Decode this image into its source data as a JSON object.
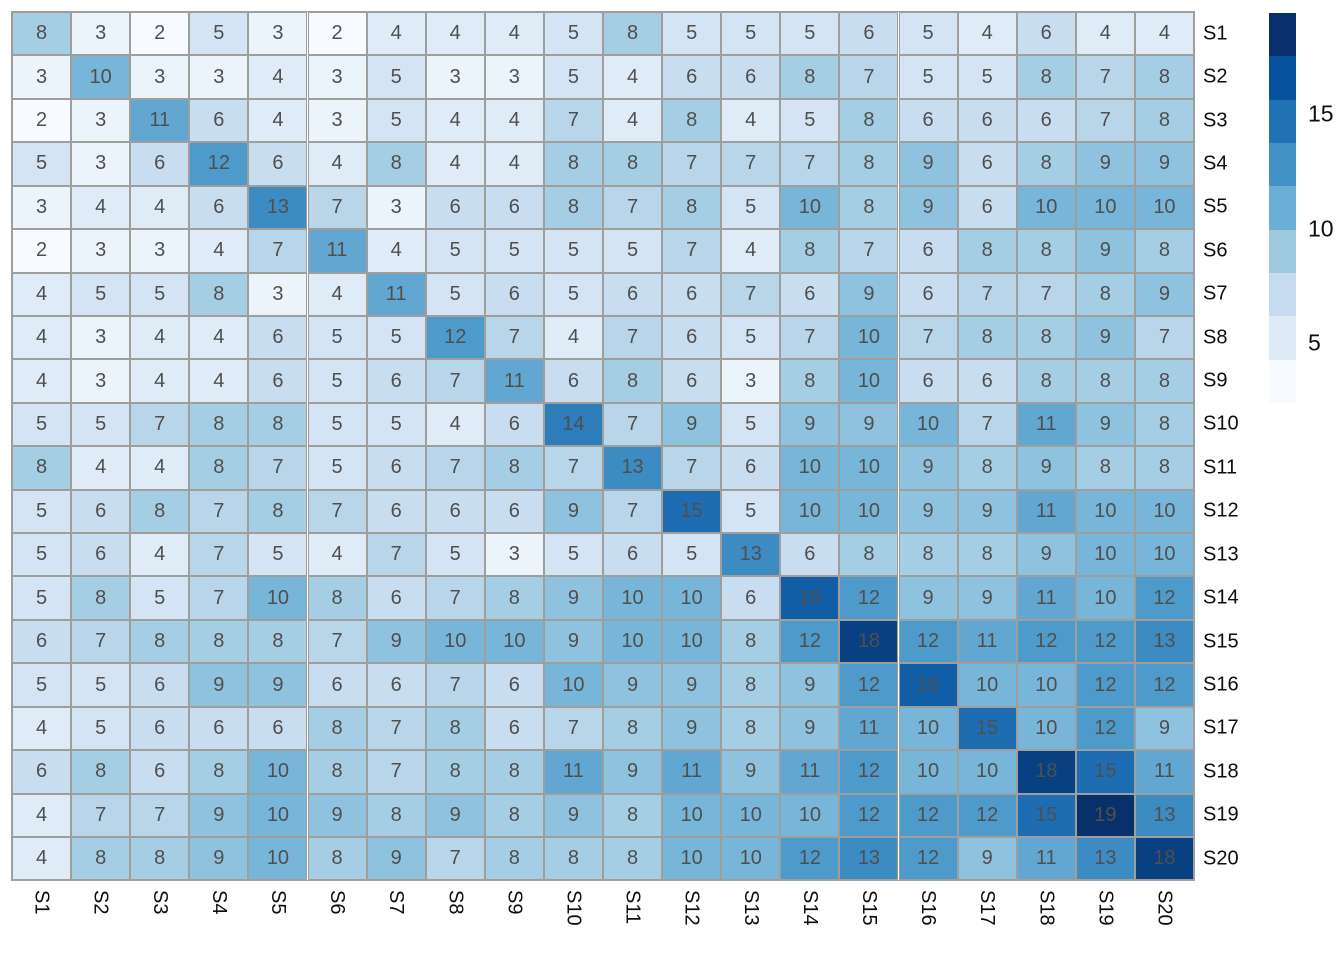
{
  "chart_data": {
    "type": "heatmap",
    "title": "",
    "xlabel": "",
    "ylabel": "",
    "x_categories": [
      "S1",
      "S2",
      "S3",
      "S4",
      "S5",
      "S6",
      "S7",
      "S8",
      "S9",
      "S10",
      "S11",
      "S12",
      "S13",
      "S14",
      "S15",
      "S16",
      "S17",
      "S18",
      "S19",
      "S20"
    ],
    "y_categories": [
      "S1",
      "S2",
      "S3",
      "S4",
      "S5",
      "S6",
      "S7",
      "S8",
      "S9",
      "S10",
      "S11",
      "S12",
      "S13",
      "S14",
      "S15",
      "S16",
      "S17",
      "S18",
      "S19",
      "S20"
    ],
    "matrix": [
      [
        8,
        3,
        2,
        5,
        3,
        2,
        4,
        4,
        4,
        5,
        8,
        5,
        5,
        5,
        6,
        5,
        4,
        6,
        4,
        4
      ],
      [
        3,
        10,
        3,
        3,
        4,
        3,
        5,
        3,
        3,
        5,
        4,
        6,
        6,
        8,
        7,
        5,
        5,
        8,
        7,
        8
      ],
      [
        2,
        3,
        11,
        6,
        4,
        3,
        5,
        4,
        4,
        7,
        4,
        8,
        4,
        5,
        8,
        6,
        6,
        6,
        7,
        8
      ],
      [
        5,
        3,
        6,
        12,
        6,
        4,
        8,
        4,
        4,
        8,
        8,
        7,
        7,
        7,
        8,
        9,
        6,
        8,
        9,
        9
      ],
      [
        3,
        4,
        4,
        6,
        13,
        7,
        3,
        6,
        6,
        8,
        7,
        8,
        5,
        10,
        8,
        9,
        6,
        10,
        10,
        10
      ],
      [
        2,
        3,
        3,
        4,
        7,
        11,
        4,
        5,
        5,
        5,
        5,
        7,
        4,
        8,
        7,
        6,
        8,
        8,
        9,
        8
      ],
      [
        4,
        5,
        5,
        8,
        3,
        4,
        11,
        5,
        6,
        5,
        6,
        6,
        7,
        6,
        9,
        6,
        7,
        7,
        8,
        9
      ],
      [
        4,
        3,
        4,
        4,
        6,
        5,
        5,
        12,
        7,
        4,
        7,
        6,
        5,
        7,
        10,
        7,
        8,
        8,
        9,
        7
      ],
      [
        4,
        3,
        4,
        4,
        6,
        5,
        6,
        7,
        11,
        6,
        8,
        6,
        3,
        8,
        10,
        6,
        6,
        8,
        8,
        8
      ],
      [
        5,
        5,
        7,
        8,
        8,
        5,
        5,
        4,
        6,
        14,
        7,
        9,
        5,
        9,
        9,
        10,
        7,
        11,
        9,
        8
      ],
      [
        8,
        4,
        4,
        8,
        7,
        5,
        6,
        7,
        8,
        7,
        13,
        7,
        6,
        10,
        10,
        9,
        8,
        9,
        8,
        8
      ],
      [
        5,
        6,
        8,
        7,
        8,
        7,
        6,
        6,
        6,
        9,
        7,
        15,
        5,
        10,
        10,
        9,
        9,
        11,
        10,
        10
      ],
      [
        5,
        6,
        4,
        7,
        5,
        4,
        7,
        5,
        3,
        5,
        6,
        5,
        13,
        6,
        8,
        8,
        8,
        9,
        10,
        10
      ],
      [
        5,
        8,
        5,
        7,
        10,
        8,
        6,
        7,
        8,
        9,
        10,
        10,
        6,
        16,
        12,
        9,
        9,
        11,
        10,
        12
      ],
      [
        6,
        7,
        8,
        8,
        8,
        7,
        9,
        10,
        10,
        9,
        10,
        10,
        8,
        12,
        18,
        12,
        11,
        12,
        12,
        13
      ],
      [
        5,
        5,
        6,
        9,
        9,
        6,
        6,
        7,
        6,
        10,
        9,
        9,
        8,
        9,
        12,
        16,
        10,
        10,
        12,
        12
      ],
      [
        4,
        5,
        6,
        6,
        6,
        8,
        7,
        8,
        6,
        7,
        8,
        9,
        8,
        9,
        11,
        10,
        15,
        10,
        12,
        9
      ],
      [
        6,
        8,
        6,
        8,
        10,
        8,
        7,
        8,
        8,
        11,
        9,
        11,
        9,
        11,
        12,
        10,
        10,
        18,
        15,
        11
      ],
      [
        4,
        7,
        7,
        9,
        10,
        9,
        8,
        9,
        8,
        9,
        8,
        10,
        10,
        10,
        12,
        12,
        12,
        15,
        19,
        13
      ],
      [
        4,
        8,
        8,
        9,
        10,
        8,
        9,
        7,
        8,
        8,
        8,
        10,
        10,
        12,
        13,
        12,
        9,
        11,
        13,
        18
      ]
    ],
    "cell_values_shown": true,
    "value_domain": [
      2,
      19
    ],
    "palette_name": "brewer-blues-9",
    "palette": [
      "#f7fbff",
      "#deebf7",
      "#c6dbef",
      "#9ecae1",
      "#6baed6",
      "#4292c6",
      "#2171b5",
      "#08519c",
      "#08306b"
    ],
    "grid_on": true,
    "grid_line_color": "#9e9e9c",
    "cell_text_color": "#4f4f4f",
    "axis_text_color": "#0d0d0d",
    "background_color": "#ffffff",
    "legend": {
      "position": "right",
      "orientation": "vertical",
      "steps": 9,
      "tick_labels": [
        "15",
        "10",
        "5"
      ],
      "tick_values": [
        15,
        10,
        5
      ],
      "domain_top": 19.4,
      "domain_bottom": 2.4
    }
  }
}
